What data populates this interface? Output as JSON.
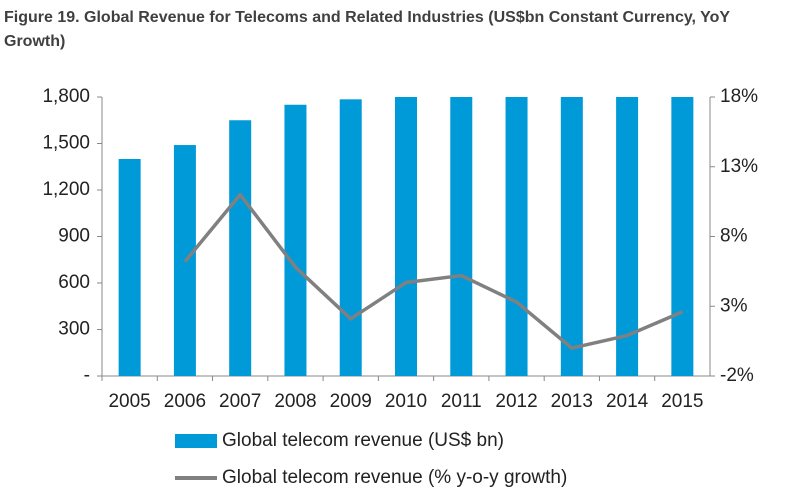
{
  "chart_data": {
    "type": "bar_line",
    "title": "Figure 19. Global Revenue for Telecoms and Related Industries (US$bn Constant Currency, YoY Growth)",
    "categories": [
      "2005",
      "2006",
      "2007",
      "2008",
      "2009",
      "2010",
      "2011",
      "2012",
      "2013",
      "2014",
      "2015"
    ],
    "series": [
      {
        "name": "Global telecom revenue (US$ bn)",
        "type": "bar",
        "color": "#009ad9",
        "values": [
          1400,
          1490,
          1650,
          1750,
          1785,
          1800,
          1800,
          1800,
          1800,
          1800,
          1800
        ]
      },
      {
        "name": "Global telecom revenue (% y-o-y growth)",
        "type": "line",
        "axis": "y2",
        "color": "#808080",
        "values": [
          null,
          6.2,
          11.0,
          5.8,
          2.1,
          4.7,
          5.2,
          3.3,
          0.0,
          0.9,
          2.6
        ]
      }
    ],
    "ylim": [
      0,
      1800
    ],
    "yticks": [
      {
        "value": 0,
        "label": "-"
      },
      300,
      600,
      900,
      {
        "value": 1200,
        "label": "1,200"
      },
      {
        "value": 1500,
        "label": "1,500"
      },
      {
        "value": 1800,
        "label": "1,800"
      }
    ],
    "y2lim": [
      -2,
      18
    ],
    "y2ticks": [
      {
        "value": -2,
        "label": "-2%"
      },
      {
        "value": 3,
        "label": "3%"
      },
      {
        "value": 8,
        "label": "8%"
      },
      {
        "value": 13,
        "label": "13%"
      },
      {
        "value": 18,
        "label": "18%"
      }
    ]
  }
}
